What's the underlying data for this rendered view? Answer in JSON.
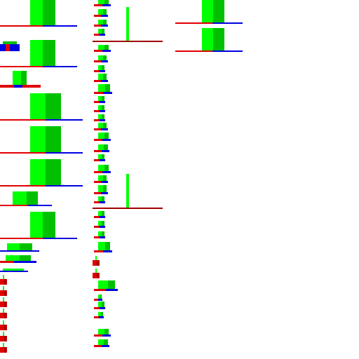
{
  "canvas": {
    "background": "#ffffff",
    "description_colors": {
      "green_light": "#00ff00",
      "green_dark": "#00c000",
      "red": "#e00000",
      "blue": "#0000e0",
      "dark_red": "#a00000"
    }
  },
  "glyph_kinds": [
    "bar-column-glyph",
    "line-glyph",
    "spike-glyph"
  ]
}
